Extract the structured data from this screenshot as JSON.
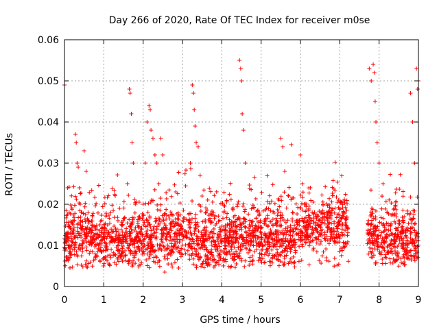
{
  "chart_data": {
    "type": "scatter",
    "title": "Day 266 of 2020, Rate Of TEC Index for receiver m0se",
    "xlabel": "GPS time / hours",
    "ylabel": "ROTI / TECUs",
    "xlim": [
      0,
      9
    ],
    "ylim": [
      0,
      0.06
    ],
    "xticks": [
      0,
      1,
      2,
      3,
      4,
      5,
      6,
      7,
      8,
      9
    ],
    "xtick_labels": [
      "0",
      "1",
      "2",
      "3",
      "4",
      "5",
      "6",
      "7",
      "8",
      "9"
    ],
    "yticks": [
      0,
      0.01,
      0.02,
      0.03,
      0.04,
      0.05,
      0.06
    ],
    "ytick_labels": [
      "0",
      "0.01",
      "0.02",
      "0.03",
      "0.04",
      "0.05",
      "0.06"
    ],
    "grid": true,
    "marker": "+",
    "series": [
      {
        "name": "ROTI",
        "color": "#ff0000",
        "points": [
          [
            0.0,
            0.049
          ],
          [
            0.0,
            0.0095
          ],
          [
            0.05,
            0.012
          ],
          [
            0.08,
            0.024
          ],
          [
            0.1,
            0.015
          ],
          [
            0.12,
            0.018
          ],
          [
            0.15,
            0.0085
          ],
          [
            0.18,
            0.011
          ],
          [
            0.2,
            0.013
          ],
          [
            0.22,
            0.016
          ],
          [
            0.25,
            0.009
          ],
          [
            0.28,
            0.037
          ],
          [
            0.3,
            0.035
          ],
          [
            0.32,
            0.03
          ],
          [
            0.35,
            0.029
          ],
          [
            0.38,
            0.024
          ],
          [
            0.4,
            0.02
          ],
          [
            0.42,
            0.012
          ],
          [
            0.45,
            0.014
          ],
          [
            0.5,
            0.033
          ],
          [
            0.55,
            0.028
          ],
          [
            0.6,
            0.018
          ],
          [
            0.7,
            0.012
          ],
          [
            0.8,
            0.01
          ],
          [
            0.9,
            0.015
          ],
          [
            1.0,
            0.013
          ],
          [
            1.1,
            0.009
          ],
          [
            1.2,
            0.011
          ],
          [
            1.3,
            0.014
          ],
          [
            1.4,
            0.019
          ],
          [
            1.5,
            0.012
          ],
          [
            1.6,
            0.025
          ],
          [
            1.65,
            0.048
          ],
          [
            1.67,
            0.047
          ],
          [
            1.7,
            0.042
          ],
          [
            1.72,
            0.035
          ],
          [
            1.75,
            0.03
          ],
          [
            1.8,
            0.02
          ],
          [
            1.9,
            0.017
          ],
          [
            2.0,
            0.02
          ],
          [
            2.05,
            0.03
          ],
          [
            2.1,
            0.04
          ],
          [
            2.15,
            0.044
          ],
          [
            2.18,
            0.043
          ],
          [
            2.2,
            0.038
          ],
          [
            2.25,
            0.036
          ],
          [
            2.3,
            0.032
          ],
          [
            2.35,
            0.03
          ],
          [
            2.4,
            0.025
          ],
          [
            2.45,
            0.036
          ],
          [
            2.5,
            0.032
          ],
          [
            2.55,
            0.0035
          ],
          [
            2.6,
            0.012
          ],
          [
            2.7,
            0.015
          ],
          [
            2.8,
            0.01
          ],
          [
            2.9,
            0.013
          ],
          [
            3.0,
            0.016
          ],
          [
            3.1,
            0.012
          ],
          [
            3.2,
            0.03
          ],
          [
            3.25,
            0.049
          ],
          [
            3.28,
            0.047
          ],
          [
            3.3,
            0.043
          ],
          [
            3.32,
            0.039
          ],
          [
            3.35,
            0.035
          ],
          [
            3.4,
            0.034
          ],
          [
            3.45,
            0.027
          ],
          [
            3.5,
            0.022
          ],
          [
            3.6,
            0.018
          ],
          [
            3.7,
            0.016
          ],
          [
            3.8,
            0.014
          ],
          [
            3.9,
            0.012
          ],
          [
            4.0,
            0.011
          ],
          [
            4.1,
            0.013
          ],
          [
            4.2,
            0.012
          ],
          [
            4.3,
            0.015
          ],
          [
            4.4,
            0.02
          ],
          [
            4.45,
            0.055
          ],
          [
            4.48,
            0.053
          ],
          [
            4.5,
            0.05
          ],
          [
            4.52,
            0.042
          ],
          [
            4.55,
            0.038
          ],
          [
            4.6,
            0.03
          ],
          [
            4.7,
            0.015
          ],
          [
            4.8,
            0.012
          ],
          [
            4.9,
            0.014
          ],
          [
            5.0,
            0.012
          ],
          [
            5.1,
            0.011
          ],
          [
            5.2,
            0.013
          ],
          [
            5.3,
            0.015
          ],
          [
            5.4,
            0.016
          ],
          [
            5.5,
            0.036
          ],
          [
            5.55,
            0.034
          ],
          [
            5.6,
            0.028
          ],
          [
            5.7,
            0.022
          ],
          [
            5.8,
            0.018
          ],
          [
            5.9,
            0.016
          ],
          [
            6.0,
            0.032
          ],
          [
            6.05,
            0.025
          ],
          [
            6.1,
            0.02
          ],
          [
            6.2,
            0.015
          ],
          [
            6.3,
            0.018
          ],
          [
            6.4,
            0.014
          ],
          [
            6.5,
            0.016
          ],
          [
            6.6,
            0.017
          ],
          [
            6.7,
            0.015
          ],
          [
            6.8,
            0.014
          ],
          [
            6.9,
            0.012
          ],
          [
            7.0,
            0.016
          ],
          [
            7.1,
            0.018
          ],
          [
            7.2,
            0.014
          ],
          [
            7.75,
            0.053
          ],
          [
            7.8,
            0.05
          ],
          [
            7.85,
            0.054
          ],
          [
            7.88,
            0.052
          ],
          [
            7.9,
            0.045
          ],
          [
            7.92,
            0.04
          ],
          [
            7.95,
            0.035
          ],
          [
            8.0,
            0.03
          ],
          [
            8.1,
            0.025
          ],
          [
            8.2,
            0.018
          ],
          [
            8.3,
            0.015
          ],
          [
            8.4,
            0.012
          ],
          [
            8.5,
            0.016
          ],
          [
            8.6,
            0.014
          ],
          [
            8.7,
            0.012
          ],
          [
            8.8,
            0.047
          ],
          [
            8.85,
            0.04
          ],
          [
            8.9,
            0.03
          ],
          [
            8.95,
            0.053
          ],
          [
            8.98,
            0.048
          ],
          [
            9.0,
            0.05
          ]
        ]
      }
    ],
    "gaps": [
      [
        7.22,
        7.7
      ]
    ],
    "note": "Dense cloud of '+' markers with most values between 0.005 and 0.022 across 0–7.2 h and 7.7–9 h; no data between ~7.2 h and ~7.7 h."
  }
}
